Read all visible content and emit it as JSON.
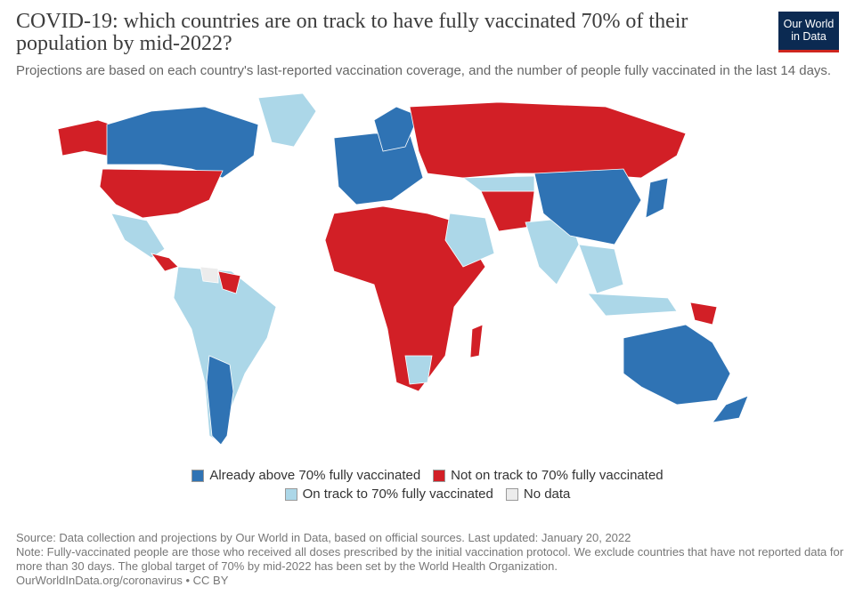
{
  "header": {
    "title": "COVID-19: which countries are on track to have fully vaccinated 70% of their population by mid-2022?",
    "subtitle": "Projections are based on each country's last-reported vaccination coverage, and the number of people fully vaccinated in the last 14 days.",
    "logo": [
      "Our World",
      "in Data"
    ]
  },
  "legend": [
    {
      "label": "Already above 70% fully vaccinated",
      "color": "#2f73b4"
    },
    {
      "label": "Not on track to 70% fully vaccinated",
      "color": "#d21f26"
    },
    {
      "label": "On track to 70% fully vaccinated",
      "color": "#acd7e8"
    },
    {
      "label": "No data",
      "color": "#ececec"
    }
  ],
  "footer": {
    "source": "Source: Data collection and projections by Our World in Data, based on official sources. Last updated: January 20, 2022",
    "note": "Note: Fully-vaccinated people are those who received all doses prescribed by the initial vaccination protocol. We exclude countries that have not reported data for more than 30 days. The global target of 70% by mid-2022 has been set by the World Health Organization.",
    "url": "OurWorldInData.org/coronavirus • CC BY"
  }
}
